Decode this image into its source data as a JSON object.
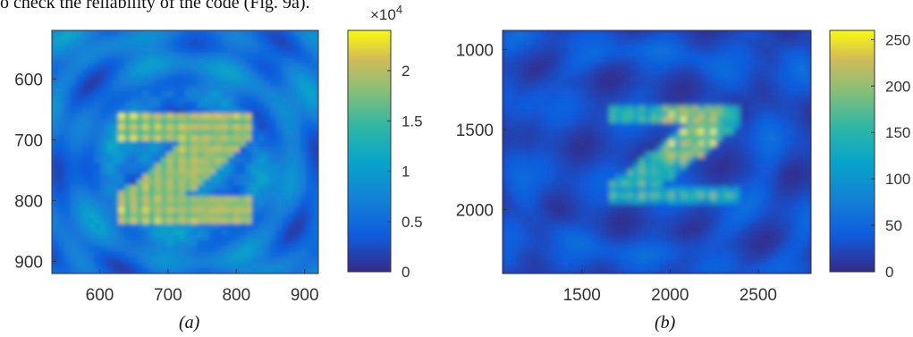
{
  "header_fragment": "o check the reliability of the code (Fig. 9a).",
  "colors": {
    "colormap": "parula",
    "frame": "#333333"
  },
  "figures": [
    {
      "caption": "(a)",
      "chart_data": {
        "type": "heatmap",
        "xlim": [
          530,
          920
        ],
        "ylim": [
          920,
          520
        ],
        "x_ticks": [
          "600",
          "700",
          "800",
          "900"
        ],
        "x_tick_values": [
          600,
          700,
          800,
          900
        ],
        "y_ticks": [
          "600",
          "700",
          "800",
          "900"
        ],
        "y_tick_values": [
          600,
          700,
          800,
          900
        ],
        "colorbar": {
          "min": 0,
          "max": 2.4,
          "tick_labels": [
            "0",
            "0.5",
            "1",
            "1.5",
            "2"
          ],
          "tick_values": [
            0,
            0.5,
            1,
            1.5,
            2
          ],
          "multiplier_base": "×10",
          "multiplier_exponent": "4"
        }
      }
    },
    {
      "caption": "(b)",
      "chart_data": {
        "type": "heatmap",
        "xlim": [
          1050,
          2800
        ],
        "ylim": [
          2400,
          880
        ],
        "x_ticks": [
          "1500",
          "2000",
          "2500"
        ],
        "x_tick_values": [
          1500,
          2000,
          2500
        ],
        "y_ticks": [
          "1000",
          "1500",
          "2000"
        ],
        "y_tick_values": [
          1000,
          1500,
          2000
        ],
        "colorbar": {
          "min": 0,
          "max": 260,
          "tick_labels": [
            "0",
            "50",
            "100",
            "150",
            "200",
            "250"
          ],
          "tick_values": [
            0,
            50,
            100,
            150,
            200,
            250
          ]
        }
      }
    }
  ]
}
